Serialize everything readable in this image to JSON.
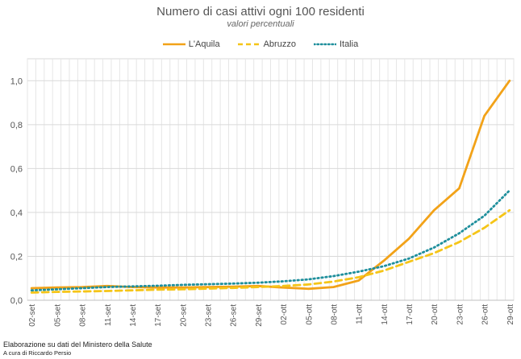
{
  "chart_data": {
    "type": "line",
    "title": "Numero di casi attivi ogni 100 residenti",
    "subtitle": "valori percentuali",
    "xlabel": "",
    "ylabel": "",
    "ylim": [
      0,
      1.1
    ],
    "yticks": [
      "0,0",
      "0,2",
      "0,4",
      "0,6",
      "0,8",
      "1,0"
    ],
    "ytick_values": [
      0,
      0.2,
      0.4,
      0.6,
      0.8,
      1.0
    ],
    "legend_position": "top-center",
    "grid": true,
    "x_count": 58,
    "tick_labels": [
      "02-set",
      "05-set",
      "08-set",
      "11-set",
      "14-set",
      "17-set",
      "20-set",
      "23-set",
      "26-set",
      "29-set",
      "02-ott",
      "05-ott",
      "08-ott",
      "11-ott",
      "14-ott",
      "17-ott",
      "20-ott",
      "23-ott",
      "26-ott",
      "29-ott"
    ],
    "tick_indices": [
      0,
      3,
      6,
      9,
      12,
      15,
      18,
      21,
      24,
      27,
      30,
      33,
      36,
      39,
      42,
      45,
      48,
      51,
      54,
      57
    ],
    "series": [
      {
        "name": "L'Aquila",
        "color": "#f2a218",
        "style": "solid",
        "x": [
          0,
          3,
          6,
          9,
          12,
          15,
          18,
          21,
          24,
          27,
          30,
          33,
          36,
          39,
          42,
          45,
          48,
          51,
          54,
          57
        ],
        "values": [
          0.055,
          0.058,
          0.06,
          0.065,
          0.06,
          0.058,
          0.058,
          0.06,
          0.062,
          0.065,
          0.058,
          0.052,
          0.06,
          0.09,
          0.18,
          0.28,
          0.41,
          0.51,
          0.84,
          1.0
        ]
      },
      {
        "name": "Abruzzo",
        "color": "#f5c518",
        "style": "dashed",
        "x": [
          0,
          3,
          6,
          9,
          12,
          15,
          18,
          21,
          24,
          27,
          30,
          33,
          36,
          39,
          42,
          45,
          48,
          51,
          54,
          57
        ],
        "values": [
          0.035,
          0.038,
          0.04,
          0.042,
          0.045,
          0.048,
          0.05,
          0.053,
          0.056,
          0.06,
          0.065,
          0.072,
          0.085,
          0.105,
          0.135,
          0.175,
          0.215,
          0.265,
          0.33,
          0.41
        ]
      },
      {
        "name": "Italia",
        "color": "#1f8f9c",
        "style": "dotted",
        "x": [
          0,
          3,
          6,
          9,
          12,
          15,
          18,
          21,
          24,
          27,
          30,
          33,
          36,
          39,
          42,
          45,
          48,
          51,
          54,
          57
        ],
        "values": [
          0.045,
          0.05,
          0.055,
          0.06,
          0.063,
          0.066,
          0.07,
          0.073,
          0.076,
          0.08,
          0.086,
          0.095,
          0.11,
          0.13,
          0.155,
          0.19,
          0.24,
          0.305,
          0.385,
          0.5
        ]
      }
    ]
  },
  "footer": {
    "source": "Elaborazione su dati del Ministero della Salute",
    "author": "A cura di Riccardo Persio"
  }
}
